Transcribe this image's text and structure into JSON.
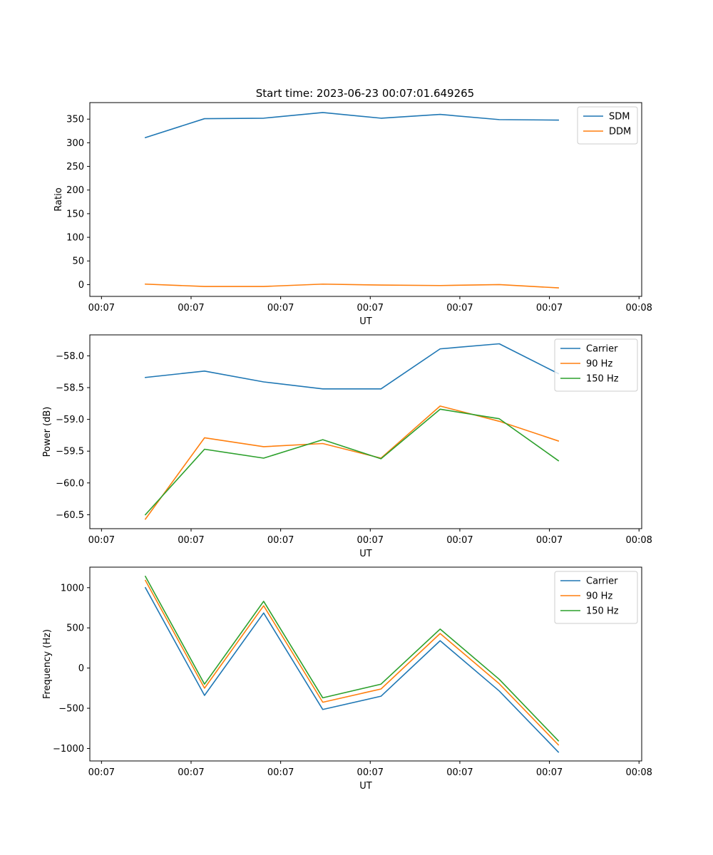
{
  "figure_title": "Start time: 2023-06-23 00:07:01.649265",
  "x_tick_labels": [
    "00:07",
    "00:07",
    "00:07",
    "00:07",
    "00:07",
    "00:07",
    "00:08"
  ],
  "x_tick_seconds": [
    0,
    1,
    2,
    3,
    4,
    5,
    6
  ],
  "xlim_seconds": [
    -0.13,
    6.03
  ],
  "colors": {
    "blue": "#1f77b4",
    "orange": "#ff7f0e",
    "green": "#2ca02c"
  },
  "chart_data": [
    {
      "type": "line",
      "title": "Start time: 2023-06-23 00:07:01.649265",
      "xlabel": "UT",
      "ylabel": "Ratio",
      "ylim": [
        -25,
        385
      ],
      "yticks": [
        0,
        50,
        100,
        150,
        200,
        250,
        300,
        350
      ],
      "legend_position": "top-right",
      "x": [
        0.49,
        1.15,
        1.81,
        2.47,
        3.12,
        3.78,
        4.44,
        5.1
      ],
      "series": [
        {
          "name": "SDM",
          "color": "#1f77b4",
          "values": [
            311,
            351,
            352,
            364,
            352,
            360,
            349,
            348
          ]
        },
        {
          "name": "DDM",
          "color": "#ff7f0e",
          "values": [
            1,
            -4,
            -4,
            1,
            -1,
            -2,
            0,
            -7
          ]
        }
      ]
    },
    {
      "type": "line",
      "xlabel": "UT",
      "ylabel": "Power (dB)",
      "ylim": [
        -60.72,
        -57.67
      ],
      "yticks": [
        -60.5,
        -60.0,
        -59.5,
        -59.0,
        -58.5,
        -58.0
      ],
      "legend_position": "top-right",
      "x": [
        0.49,
        1.15,
        1.81,
        2.47,
        3.12,
        3.78,
        4.44,
        5.1
      ],
      "series": [
        {
          "name": "Carrier",
          "color": "#1f77b4",
          "values": [
            -58.34,
            -58.24,
            -58.41,
            -58.52,
            -58.52,
            -57.89,
            -57.81,
            -58.28
          ]
        },
        {
          "name": "90 Hz",
          "color": "#ff7f0e",
          "values": [
            -60.57,
            -59.29,
            -59.43,
            -59.38,
            -59.61,
            -58.79,
            -59.03,
            -59.34
          ]
        },
        {
          "name": "150 Hz",
          "color": "#2ca02c",
          "values": [
            -60.5,
            -59.47,
            -59.61,
            -59.32,
            -59.62,
            -58.84,
            -58.99,
            -59.65
          ]
        }
      ]
    },
    {
      "type": "line",
      "xlabel": "UT",
      "ylabel": "Frequency (Hz)",
      "ylim": [
        -1155,
        1255
      ],
      "yticks": [
        -1000,
        -500,
        0,
        500,
        1000
      ],
      "legend_position": "top-right",
      "x": [
        0.49,
        1.15,
        1.81,
        2.47,
        3.12,
        3.78,
        4.44,
        5.1
      ],
      "series": [
        {
          "name": "Carrier",
          "color": "#1f77b4",
          "values": [
            1000,
            -340,
            685,
            -515,
            -350,
            340,
            -285,
            -1045
          ]
        },
        {
          "name": "90 Hz",
          "color": "#ff7f0e",
          "values": [
            1090,
            -250,
            775,
            -425,
            -260,
            430,
            -195,
            -955
          ]
        },
        {
          "name": "150 Hz",
          "color": "#2ca02c",
          "values": [
            1140,
            -200,
            830,
            -370,
            -200,
            485,
            -140,
            -905
          ]
        }
      ]
    }
  ]
}
